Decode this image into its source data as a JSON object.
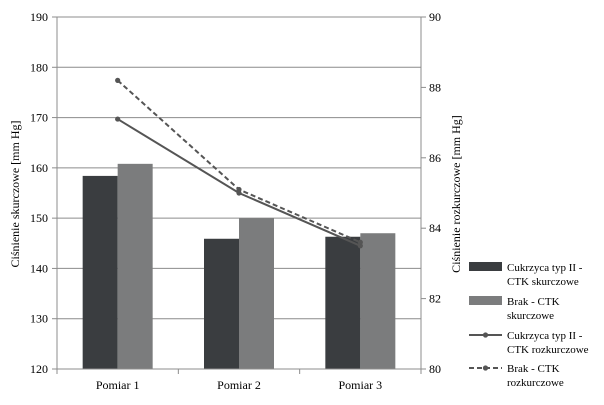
{
  "chart_data": {
    "type": "bar",
    "categories": [
      "Pomiar 1",
      "Pomiar 2",
      "Pomiar 3"
    ],
    "y_left": {
      "label": "Ciśnienie skurczowe [mm Hg]",
      "range": [
        120,
        190
      ],
      "ticks": [
        120,
        130,
        140,
        150,
        160,
        170,
        180,
        190
      ]
    },
    "y_right": {
      "label": "Ciśnienie rozkurczowe [mm Hg]",
      "range": [
        80,
        90
      ],
      "ticks": [
        80,
        82,
        84,
        86,
        88,
        90
      ]
    },
    "grid": true,
    "legend_position": "right",
    "series": [
      {
        "name": "Cukrzyca typ II - CTK skurczowe",
        "name_lines": [
          "Cukrzyca typ II -",
          "CTK skurczowe"
        ],
        "type": "bar",
        "axis": "left",
        "color": "#3a3d40",
        "values": [
          158.4,
          145.9,
          146.3
        ]
      },
      {
        "name": "Brak - CTK skurczowe",
        "name_lines": [
          "Brak - CTK",
          "skurczowe"
        ],
        "type": "bar",
        "axis": "left",
        "color": "#7b7c7d",
        "values": [
          160.8,
          150.0,
          147.0
        ]
      },
      {
        "name": "Cukrzyca typ II - CTK rozkurczowe",
        "name_lines": [
          "Cukrzyca typ II -",
          "CTK rozkurczowe"
        ],
        "type": "line",
        "dash": false,
        "axis": "right",
        "color": "#555555",
        "values": [
          87.1,
          85.0,
          83.5
        ]
      },
      {
        "name": "Brak - CTK rozkurczowe",
        "name_lines": [
          "Brak - CTK",
          "rozkurczowe"
        ],
        "type": "line",
        "dash": true,
        "axis": "right",
        "color": "#555555",
        "values": [
          88.2,
          85.1,
          83.6
        ]
      }
    ]
  }
}
